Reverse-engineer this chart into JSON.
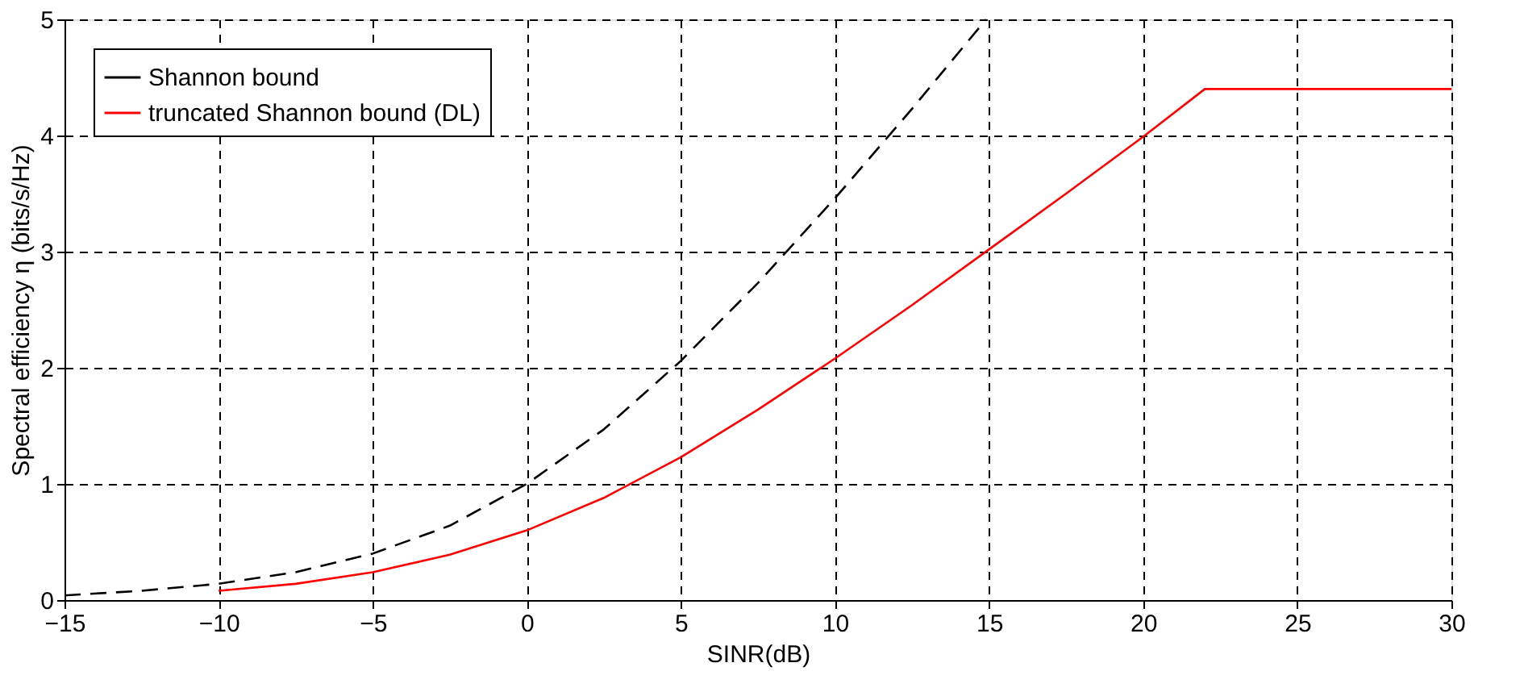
{
  "chart_data": {
    "type": "line",
    "xlabel": "SINR(dB)",
    "ylabel": "Spectral efficiency η (bits/s/Hz)",
    "xlim": [
      -15,
      30
    ],
    "ylim": [
      0,
      5
    ],
    "xticks": [
      -15,
      -10,
      -5,
      0,
      5,
      10,
      15,
      20,
      25,
      30
    ],
    "yticks": [
      0,
      1,
      2,
      3,
      4,
      5
    ],
    "grid": true,
    "legend": "top left",
    "series": [
      {
        "name": "Shannon bound",
        "color": "#000000",
        "line_style": "dashed",
        "x": [
          -15,
          -12.5,
          -10,
          -7.5,
          -5,
          -2.5,
          0,
          2.5,
          5,
          7.5,
          10,
          12.5,
          14.9
        ],
        "values": [
          0.04,
          0.08,
          0.14,
          0.24,
          0.4,
          0.64,
          1.0,
          1.47,
          2.06,
          2.73,
          3.46,
          4.23,
          5.0
        ]
      },
      {
        "name": "truncated Shannon bound (DL)",
        "color": "#ff0000",
        "line_style": "solid",
        "x": [
          -10,
          -7.5,
          -5,
          -2.5,
          0,
          2.5,
          5,
          7.5,
          10,
          12.5,
          15,
          17.5,
          20,
          22,
          30
        ],
        "values": [
          0.08,
          0.14,
          0.24,
          0.39,
          0.6,
          0.88,
          1.23,
          1.64,
          2.08,
          2.54,
          3.02,
          3.5,
          3.99,
          4.4,
          4.4
        ]
      }
    ]
  }
}
